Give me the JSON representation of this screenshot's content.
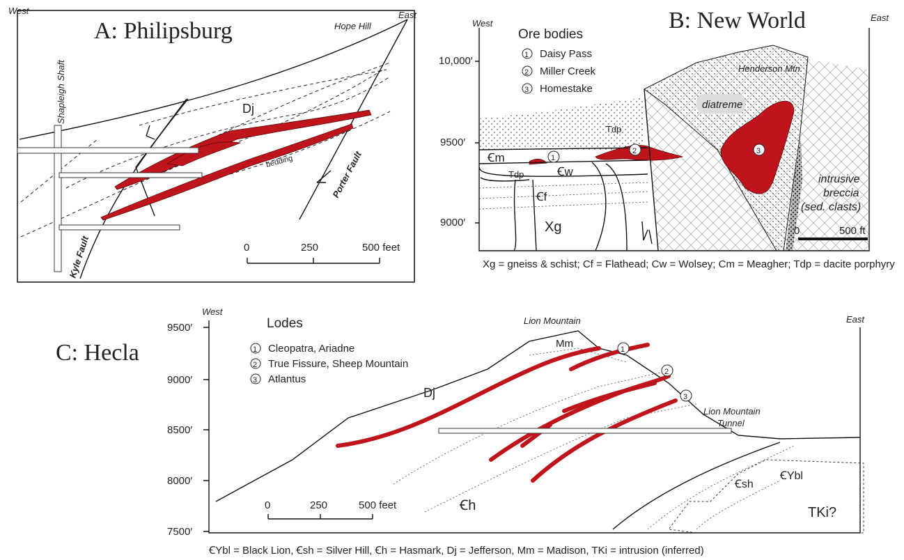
{
  "panel_a": {
    "title": "A: Philipsburg",
    "west": "West",
    "east": "East",
    "hope_hill": "Hope Hill",
    "shaft": "Shapleigh Shaft",
    "unit": "Dj",
    "bedding": "bedding",
    "porter_fault": "Porter Fault",
    "kyle_fault": "Kyle Fault",
    "scale": [
      "0",
      "250",
      "500 feet"
    ]
  },
  "panel_b": {
    "title": "B: New World",
    "west": "West",
    "east": "East",
    "legend_title": "Ore bodies",
    "legend": [
      {
        "number": "1",
        "name": "Daisy Pass"
      },
      {
        "number": "2",
        "name": "Miller Creek"
      },
      {
        "number": "3",
        "name": "Homestake"
      }
    ],
    "markers": [
      "1",
      "2",
      "3"
    ],
    "mountain": "Henderson Mtn.",
    "diatreme": "diatreme",
    "elevations": [
      "10,000′",
      "9500′",
      "9000′"
    ],
    "units": {
      "tdp_upper": "Tdp",
      "cm": "Ꞓm",
      "cw": "Ꞓw",
      "tdp_lower": "Tdp",
      "cf": "Ꞓf",
      "xg": "Xg"
    },
    "breccia": [
      "intrusive",
      "breccia",
      "(sed. clasts)"
    ],
    "scale": [
      "0",
      "500 ft"
    ],
    "caption": "Xg = gneiss & schist; Cf = Flathead; Cw = Wolsey; Cm = Meagher; Tdp = dacite porphyry"
  },
  "panel_c": {
    "title": "C: Hecla",
    "west": "West",
    "east": "East",
    "legend_title": "Lodes",
    "legend": [
      {
        "number": "1",
        "name": "Cleopatra, Ariadne"
      },
      {
        "number": "2",
        "name": "True Fissure, Sheep Mountain"
      },
      {
        "number": "3",
        "name": "Atlantus"
      }
    ],
    "markers": [
      "1",
      "2",
      "3"
    ],
    "mountain": "Lion Mountain",
    "tunnel": [
      "Lion Mountain",
      "Tunnel"
    ],
    "elevations": [
      "9500′",
      "9000′",
      "8500′",
      "8000′",
      "7500′"
    ],
    "units": {
      "mm": "Mm",
      "dj": "Dj",
      "csh": "Ꞓsh",
      "cybl": "ꞒYbl",
      "ch": "Ꞓh",
      "tki": "TKi?"
    },
    "scale": [
      "0",
      "250",
      "500 feet"
    ],
    "caption": "ꞒYbl = Black Lion,   Ꞓsh = Silver Hill, Ꞓh = Hasmark, Dj = Jefferson, Mm = Madison, TKi = intrusion (inferred)"
  }
}
